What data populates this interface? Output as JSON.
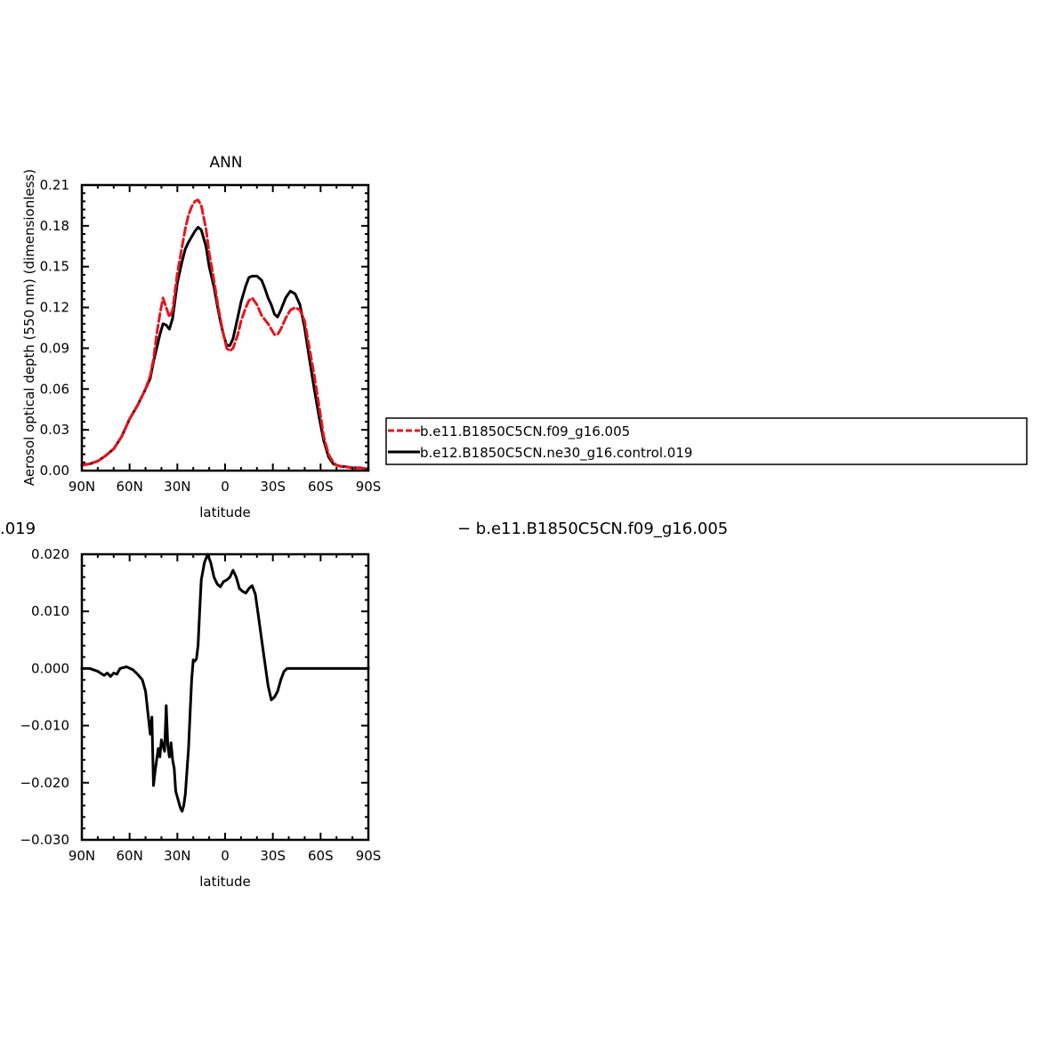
{
  "chart_data": [
    {
      "type": "line",
      "title": "ANN",
      "xlabel": "latitude",
      "ylabel": "Aerosol optical depth (550 nm) (dimensionless)",
      "xlim": [
        90,
        -90
      ],
      "ylim": [
        0,
        0.21
      ],
      "x_ticks": [
        {
          "value": 90,
          "label": "90N"
        },
        {
          "value": 60,
          "label": "60N"
        },
        {
          "value": 30,
          "label": "30N"
        },
        {
          "value": 0,
          "label": "0"
        },
        {
          "value": -30,
          "label": "30S"
        },
        {
          "value": -60,
          "label": "60S"
        },
        {
          "value": -90,
          "label": "90S"
        }
      ],
      "y_ticks": [
        {
          "value": 0,
          "label": "0.00"
        },
        {
          "value": 0.03,
          "label": "0.03"
        },
        {
          "value": 0.06,
          "label": "0.06"
        },
        {
          "value": 0.09,
          "label": "0.09"
        },
        {
          "value": 0.12,
          "label": "0.12"
        },
        {
          "value": 0.15,
          "label": "0.15"
        },
        {
          "value": 0.18,
          "label": "0.18"
        },
        {
          "value": 0.21,
          "label": "0.21"
        }
      ],
      "legend_position": "right",
      "series": [
        {
          "name": "b.e11.B1850C5CN.f09_g16.005",
          "color": "#e8141e",
          "dash": "dashed",
          "x": [
            90,
            85,
            80,
            75,
            70,
            65,
            60,
            55,
            50,
            47,
            45,
            43,
            41,
            39,
            37,
            35,
            33,
            30,
            27,
            25,
            23,
            21,
            19,
            17,
            15,
            12,
            10,
            7,
            5,
            3,
            1,
            -1,
            -3,
            -5,
            -8,
            -10,
            -13,
            -15,
            -17,
            -20,
            -23,
            -25,
            -27,
            -29,
            -31,
            -33,
            -35,
            -38,
            -41,
            -44,
            -47,
            -50,
            -53,
            -56,
            -59,
            -62,
            -65,
            -68,
            -70,
            -73,
            -75,
            -80,
            -85,
            -90
          ],
          "y": [
            0.004,
            0.005,
            0.007,
            0.011,
            0.016,
            0.025,
            0.038,
            0.048,
            0.06,
            0.07,
            0.082,
            0.1,
            0.115,
            0.127,
            0.12,
            0.113,
            0.118,
            0.145,
            0.165,
            0.178,
            0.188,
            0.194,
            0.198,
            0.199,
            0.195,
            0.178,
            0.16,
            0.14,
            0.125,
            0.112,
            0.1,
            0.09,
            0.088,
            0.09,
            0.1,
            0.11,
            0.12,
            0.125,
            0.127,
            0.122,
            0.114,
            0.111,
            0.108,
            0.104,
            0.1,
            0.1,
            0.104,
            0.112,
            0.118,
            0.12,
            0.118,
            0.11,
            0.09,
            0.07,
            0.048,
            0.025,
            0.012,
            0.006,
            0.004,
            0.003,
            0.003,
            0.002,
            0.002,
            0.001
          ]
        },
        {
          "name": "b.e12.B1850C5CN.ne30_g16.control.019",
          "color": "#000000",
          "dash": "solid",
          "x": [
            90,
            85,
            80,
            75,
            70,
            65,
            60,
            55,
            50,
            47,
            45,
            43,
            41,
            39,
            37,
            35,
            33,
            30,
            27,
            25,
            23,
            21,
            19,
            17,
            15,
            12,
            10,
            7,
            5,
            3,
            1,
            -1,
            -3,
            -5,
            -8,
            -10,
            -13,
            -15,
            -17,
            -20,
            -23,
            -25,
            -27,
            -29,
            -31,
            -33,
            -35,
            -38,
            -41,
            -44,
            -47,
            -50,
            -53,
            -56,
            -59,
            -62,
            -65,
            -68,
            -70,
            -73,
            -75,
            -80,
            -85,
            -90
          ],
          "y": [
            0.004,
            0.005,
            0.007,
            0.011,
            0.016,
            0.025,
            0.038,
            0.048,
            0.06,
            0.068,
            0.08,
            0.09,
            0.1,
            0.108,
            0.107,
            0.104,
            0.112,
            0.138,
            0.154,
            0.163,
            0.168,
            0.172,
            0.176,
            0.179,
            0.177,
            0.165,
            0.15,
            0.135,
            0.122,
            0.11,
            0.1,
            0.092,
            0.092,
            0.097,
            0.113,
            0.124,
            0.136,
            0.142,
            0.143,
            0.143,
            0.14,
            0.134,
            0.127,
            0.122,
            0.115,
            0.113,
            0.118,
            0.127,
            0.132,
            0.13,
            0.122,
            0.105,
            0.082,
            0.06,
            0.04,
            0.022,
            0.01,
            0.005,
            0.004,
            0.003,
            0.003,
            0.002,
            0.002,
            0.001
          ]
        }
      ]
    },
    {
      "type": "line",
      "title": "",
      "xlabel": "latitude",
      "ylabel": "",
      "xlim": [
        90,
        -90
      ],
      "ylim": [
        -0.03,
        0.02
      ],
      "x_ticks": [
        {
          "value": 90,
          "label": "90N"
        },
        {
          "value": 60,
          "label": "60N"
        },
        {
          "value": 30,
          "label": "30N"
        },
        {
          "value": 0,
          "label": "0"
        },
        {
          "value": -30,
          "label": "30S"
        },
        {
          "value": -60,
          "label": "60S"
        },
        {
          "value": -90,
          "label": "90S"
        }
      ],
      "y_ticks": [
        {
          "value": -0.03,
          "label": "−0.030"
        },
        {
          "value": -0.02,
          "label": "−0.020"
        },
        {
          "value": -0.01,
          "label": "−0.010"
        },
        {
          "value": 0,
          "label": "0.000"
        },
        {
          "value": 0.01,
          "label": "0.010"
        },
        {
          "value": 0.02,
          "label": "0.020"
        }
      ],
      "series": [
        {
          "color": "#000000",
          "dash": "solid",
          "x": [
            90,
            85,
            80,
            76,
            74,
            72,
            70,
            68,
            66,
            62,
            58,
            55,
            52,
            50,
            48,
            47,
            46,
            45,
            44,
            43,
            42,
            41,
            40,
            39,
            38,
            37,
            36,
            35,
            34,
            33,
            32,
            31,
            30,
            29,
            28,
            27,
            26,
            25,
            24,
            23,
            22,
            21,
            20,
            19,
            18,
            17,
            16,
            15,
            13,
            11,
            9,
            7,
            5,
            3,
            1,
            -1,
            -3,
            -5,
            -7,
            -9,
            -11,
            -13,
            -15,
            -17,
            -19,
            -21,
            -23,
            -25,
            -27,
            -29,
            -31,
            -33,
            -35,
            -37,
            -39,
            -41,
            -43,
            -45,
            -47,
            -49,
            -51,
            -53,
            -55,
            -57,
            -59,
            -61,
            -63,
            -65,
            -67,
            -69,
            -72,
            -75,
            -80,
            -85,
            -90
          ],
          "y": [
            0.0,
            0.0,
            -0.0005,
            -0.0012,
            -0.0008,
            -0.0014,
            -0.0008,
            -0.001,
            0.0,
            0.0003,
            -0.0002,
            -0.001,
            -0.002,
            -0.004,
            -0.009,
            -0.0115,
            -0.0085,
            -0.0205,
            -0.018,
            -0.016,
            -0.014,
            -0.0155,
            -0.0125,
            -0.0135,
            -0.0145,
            -0.0065,
            -0.0135,
            -0.0155,
            -0.013,
            -0.016,
            -0.0175,
            -0.0215,
            -0.0225,
            -0.0235,
            -0.0245,
            -0.025,
            -0.024,
            -0.022,
            -0.018,
            -0.014,
            -0.008,
            -0.002,
            0.0015,
            0.0013,
            0.0017,
            0.004,
            0.01,
            0.0155,
            0.0185,
            0.02,
            0.0185,
            0.016,
            0.0148,
            0.0143,
            0.0152,
            0.0155,
            0.016,
            0.0172,
            0.016,
            0.014,
            0.0135,
            0.0132,
            0.014,
            0.0145,
            0.013,
            0.009,
            0.005,
            0.001,
            -0.003,
            -0.0055,
            -0.005,
            -0.004,
            -0.002,
            -0.0005,
            0.0,
            0.0,
            0.0,
            0.0,
            0.0,
            0.0,
            0.0,
            0.0,
            0.0,
            0.0,
            0.0,
            0.0,
            0.0,
            0.0,
            0.0,
            0.0,
            0.0,
            0.0,
            0.0,
            0.0,
            0.0
          ]
        }
      ]
    }
  ],
  "fragments": {
    "left_label": ".019",
    "right_legend": "− b.e11.B1850C5CN.f09_g16.005"
  }
}
